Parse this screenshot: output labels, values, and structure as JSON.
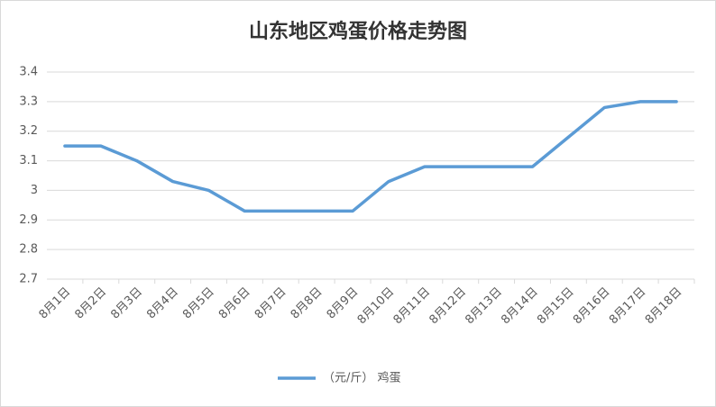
{
  "chart_data": {
    "type": "line",
    "title": "山东地区鸡蛋价格走势图",
    "categories": [
      "8月1日",
      "8月2日",
      "8月3日",
      "8月4日",
      "8月5日",
      "8月6日",
      "8月7日",
      "8月8日",
      "8月9日",
      "8月10日",
      "8月11日",
      "8月12日",
      "8月13日",
      "8月14日",
      "8月15日",
      "8月16日",
      "8月17日",
      "8月18日"
    ],
    "series": [
      {
        "name": "（元/斤） 鸡蛋",
        "color": "#5b9bd5",
        "values": [
          3.15,
          3.15,
          3.1,
          3.03,
          3.0,
          2.93,
          2.93,
          2.93,
          2.93,
          3.03,
          3.08,
          3.08,
          3.08,
          3.08,
          3.18,
          3.28,
          3.3,
          3.3
        ]
      }
    ],
    "ylim": [
      2.7,
      3.4
    ],
    "yticks": [
      2.7,
      2.8,
      2.9,
      3,
      3.1,
      3.2,
      3.3,
      3.4
    ],
    "grid": true,
    "legend": "bottom"
  }
}
